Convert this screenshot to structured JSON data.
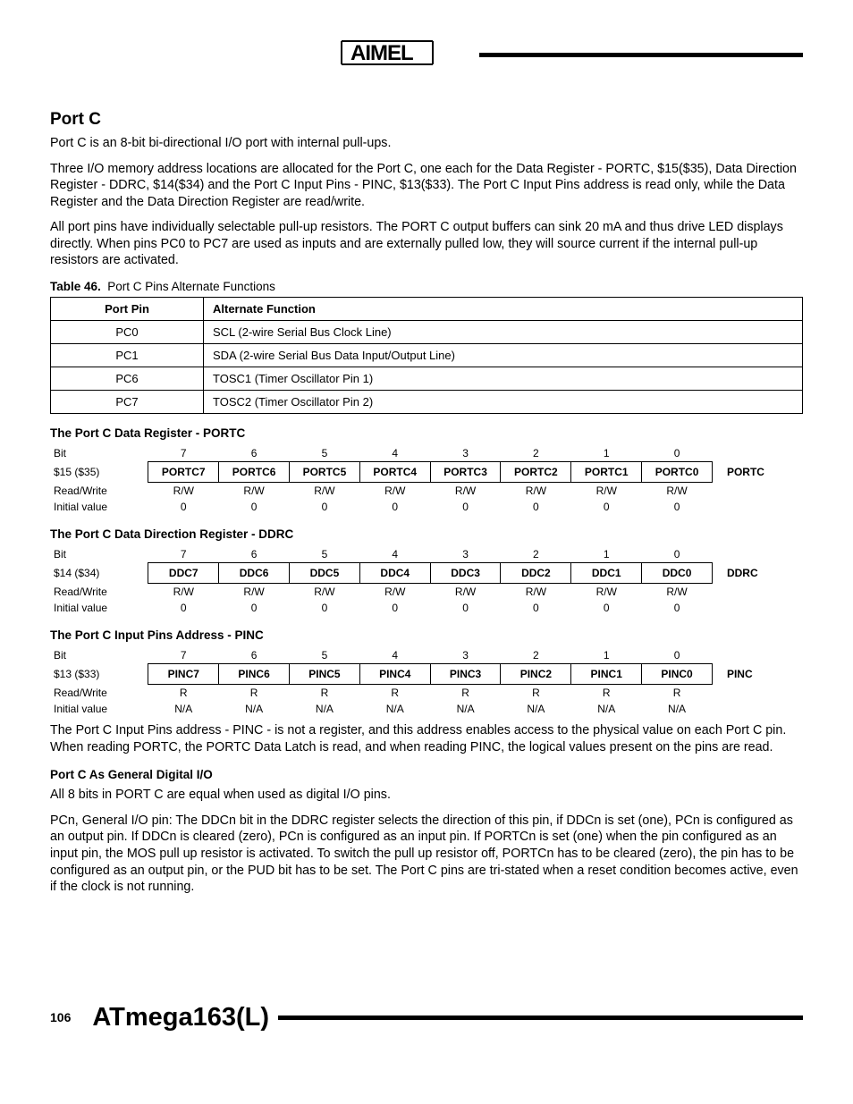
{
  "header": {
    "logo_text": "ATMEL"
  },
  "section": {
    "title": "Port C",
    "p1": "Port C is an 8-bit bi-directional I/O port with internal pull-ups.",
    "p2": "Three I/O memory address locations are allocated for the Port C, one each for the Data Register - PORTC, $15($35), Data Direction Register - DDRC, $14($34) and the Port C Input Pins - PINC, $13($33). The Port C Input Pins address is read only, while the Data Register and the Data Direction Register are read/write.",
    "p3": "All port pins have individually selectable pull-up resistors. The PORT C output buffers can sink 20 mA and thus drive LED displays directly. When pins PC0 to PC7 are used as inputs and are externally pulled low, they will source current if the internal pull-up resistors are activated."
  },
  "table46": {
    "caption_label": "Table 46.",
    "caption_text": "Port C Pins Alternate Functions",
    "headers": [
      "Port Pin",
      "Alternate Function"
    ],
    "rows": [
      [
        "PC0",
        "SCL (2-wire Serial Bus Clock Line)"
      ],
      [
        "PC1",
        "SDA (2-wire Serial Bus Data Input/Output Line)"
      ],
      [
        "PC6",
        "TOSC1 (Timer Oscillator Pin 1)"
      ],
      [
        "PC7",
        "TOSC2 (Timer Oscillator Pin 2)"
      ]
    ]
  },
  "registers": [
    {
      "title": "The Port C Data Register - PORTC",
      "addr": "$15 ($35)",
      "name": "PORTC",
      "bit_nums": [
        "7",
        "6",
        "5",
        "4",
        "3",
        "2",
        "1",
        "0"
      ],
      "bits": [
        "PORTC7",
        "PORTC6",
        "PORTC5",
        "PORTC4",
        "PORTC3",
        "PORTC2",
        "PORTC1",
        "PORTC0"
      ],
      "rw": [
        "R/W",
        "R/W",
        "R/W",
        "R/W",
        "R/W",
        "R/W",
        "R/W",
        "R/W"
      ],
      "init": [
        "0",
        "0",
        "0",
        "0",
        "0",
        "0",
        "0",
        "0"
      ]
    },
    {
      "title": "The Port C Data Direction Register - DDRC",
      "addr": "$14 ($34)",
      "name": "DDRC",
      "bit_nums": [
        "7",
        "6",
        "5",
        "4",
        "3",
        "2",
        "1",
        "0"
      ],
      "bits": [
        "DDC7",
        "DDC6",
        "DDC5",
        "DDC4",
        "DDC3",
        "DDC2",
        "DDC1",
        "DDC0"
      ],
      "rw": [
        "R/W",
        "R/W",
        "R/W",
        "R/W",
        "R/W",
        "R/W",
        "R/W",
        "R/W"
      ],
      "init": [
        "0",
        "0",
        "0",
        "0",
        "0",
        "0",
        "0",
        "0"
      ]
    },
    {
      "title": "The Port C Input Pins Address - PINC",
      "addr": "$13 ($33)",
      "name": "PINC",
      "bit_nums": [
        "7",
        "6",
        "5",
        "4",
        "3",
        "2",
        "1",
        "0"
      ],
      "bits": [
        "PINC7",
        "PINC6",
        "PINC5",
        "PINC4",
        "PINC3",
        "PINC2",
        "PINC1",
        "PINC0"
      ],
      "rw": [
        "R",
        "R",
        "R",
        "R",
        "R",
        "R",
        "R",
        "R"
      ],
      "init": [
        "N/A",
        "N/A",
        "N/A",
        "N/A",
        "N/A",
        "N/A",
        "N/A",
        "N/A"
      ]
    }
  ],
  "row_labels": {
    "bit": "Bit",
    "rw": "Read/Write",
    "init": "Initial value"
  },
  "after_registers": {
    "p1": "The Port C Input Pins address - PINC - is not a register, and this address enables access to the physical value on each Port C pin. When reading PORTC, the PORTC Data Latch is read, and when reading PINC, the logical values present on the pins are read.",
    "sub_title": "Port C As General Digital I/O",
    "p2": "All 8 bits in PORT C are equal when used as digital I/O pins.",
    "p3": "PCn, General I/O pin: The DDCn bit in the DDRC register selects the direction of this pin, if DDCn is set (one), PCn is configured as an output pin. If DDCn is cleared (zero), PCn is configured as an input pin. If PORTCn is set (one) when the pin configured as an input pin, the MOS pull up resistor is activated. To switch the pull up resistor off, PORTCn has to be cleared (zero), the pin has to be configured as an output pin, or the PUD bit has to be set. The Port C pins are tri-stated when a reset condition becomes active, even if the clock is not running."
  },
  "footer": {
    "page_num": "106",
    "product": "ATmega163(L)"
  }
}
